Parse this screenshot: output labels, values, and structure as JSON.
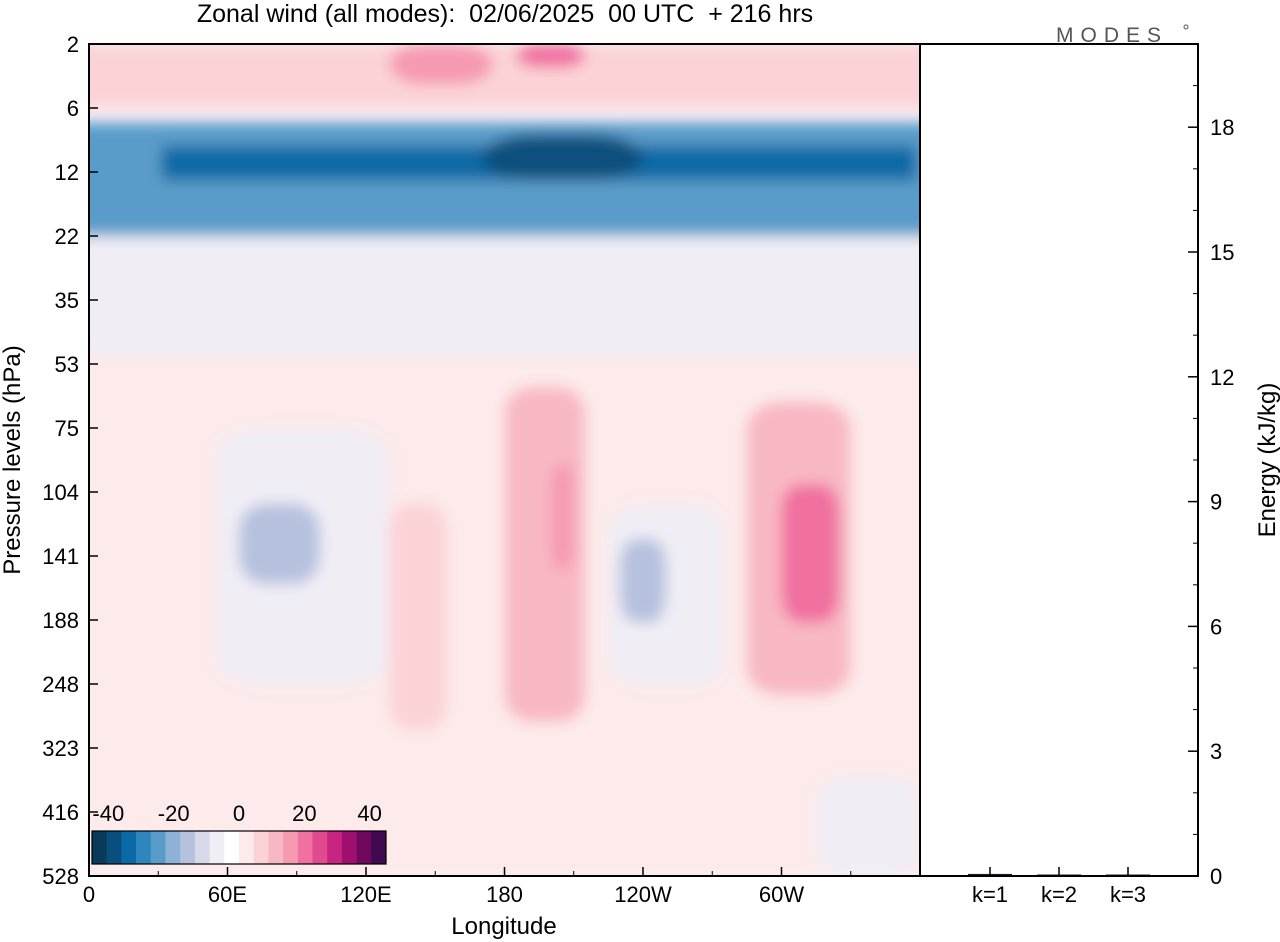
{
  "chart_data": {
    "type": "heatmap",
    "title": "Zonal wind (all modes):  02/06/2025  00 UTC  + 216 hrs",
    "xlabel": "Longitude",
    "ylabel": "Pressure levels (hPa)",
    "x_ticks": [
      "0",
      "60E",
      "120E",
      "180",
      "120W",
      "60W"
    ],
    "x_tick_degrees": [
      0,
      60,
      120,
      180,
      240,
      300
    ],
    "xlim": [
      0,
      360
    ],
    "y_ticks": [
      "2",
      "6",
      "12",
      "22",
      "35",
      "53",
      "75",
      "104",
      "141",
      "188",
      "248",
      "323",
      "416",
      "528"
    ],
    "colorbar": {
      "ticks": [
        "-40",
        "-20",
        "0",
        "20",
        "40"
      ],
      "tick_values": [
        -40,
        -20,
        0,
        20,
        40
      ],
      "range": [
        -45,
        45
      ],
      "colors": [
        "#0a3a5a",
        "#094f7e",
        "#0b6aa6",
        "#2f85bd",
        "#5a9cc9",
        "#8eb2d6",
        "#b6c1de",
        "#d9d9ea",
        "#f0edf5",
        "#ffffff",
        "#fdeaea",
        "#fbd3d6",
        "#f8b8c3",
        "#f59ab1",
        "#f070a0",
        "#e04a8f",
        "#c82482",
        "#9e0f70",
        "#70085e",
        "#3f0a52"
      ]
    },
    "wind_regions": [
      {
        "lon": [
          0,
          360
        ],
        "level": [
          2,
          6
        ],
        "value": 6
      },
      {
        "lon": [
          130,
          175
        ],
        "level": [
          2,
          4
        ],
        "value": 14
      },
      {
        "lon": [
          185,
          215
        ],
        "level": [
          2,
          3
        ],
        "value": 20
      },
      {
        "lon": [
          0,
          360
        ],
        "level": [
          7,
          22
        ],
        "value": -26
      },
      {
        "lon": [
          40,
          350
        ],
        "level": [
          9,
          13
        ],
        "value": -32
      },
      {
        "lon": [
          170,
          240
        ],
        "level": [
          8,
          13
        ],
        "value": -38
      },
      {
        "lon": [
          0,
          360
        ],
        "level": [
          22,
          50
        ],
        "value": -8
      },
      {
        "lon": [
          0,
          360
        ],
        "level": [
          50,
          528
        ],
        "value": 1
      },
      {
        "lon": [
          55,
          130
        ],
        "level": [
          75,
          250
        ],
        "value": -5
      },
      {
        "lon": [
          65,
          100
        ],
        "level": [
          110,
          160
        ],
        "value": -14
      },
      {
        "lon": [
          130,
          155
        ],
        "level": [
          110,
          300
        ],
        "value": 7
      },
      {
        "lon": [
          180,
          215
        ],
        "level": [
          60,
          290
        ],
        "value": 9
      },
      {
        "lon": [
          200,
          210
        ],
        "level": [
          90,
          150
        ],
        "value": 16
      },
      {
        "lon": [
          225,
          275
        ],
        "level": [
          110,
          250
        ],
        "value": -7
      },
      {
        "lon": [
          230,
          250
        ],
        "level": [
          130,
          190
        ],
        "value": -14
      },
      {
        "lon": [
          285,
          330
        ],
        "level": [
          65,
          260
        ],
        "value": 10
      },
      {
        "lon": [
          300,
          325
        ],
        "level": [
          100,
          190
        ],
        "value": 18
      },
      {
        "lon": [
          315,
          360
        ],
        "level": [
          360,
          528
        ],
        "value": -5
      }
    ]
  },
  "energy_panel": {
    "ylabel": "Energy (kJ/kg)",
    "y_ticks": [
      "0",
      "3",
      "6",
      "9",
      "12",
      "15",
      "18"
    ],
    "y_tick_values": [
      0,
      3,
      6,
      9,
      12,
      15,
      18
    ],
    "ylim": [
      0,
      20
    ],
    "bars": [
      {
        "label": "k=1",
        "value": 0.05
      },
      {
        "label": "k=2",
        "value": 0.03
      },
      {
        "label": "k=3",
        "value": 0.02
      }
    ]
  },
  "logo": {
    "text": "MODES"
  },
  "colors": {
    "frame": "#000000",
    "background": "#ffffff"
  }
}
